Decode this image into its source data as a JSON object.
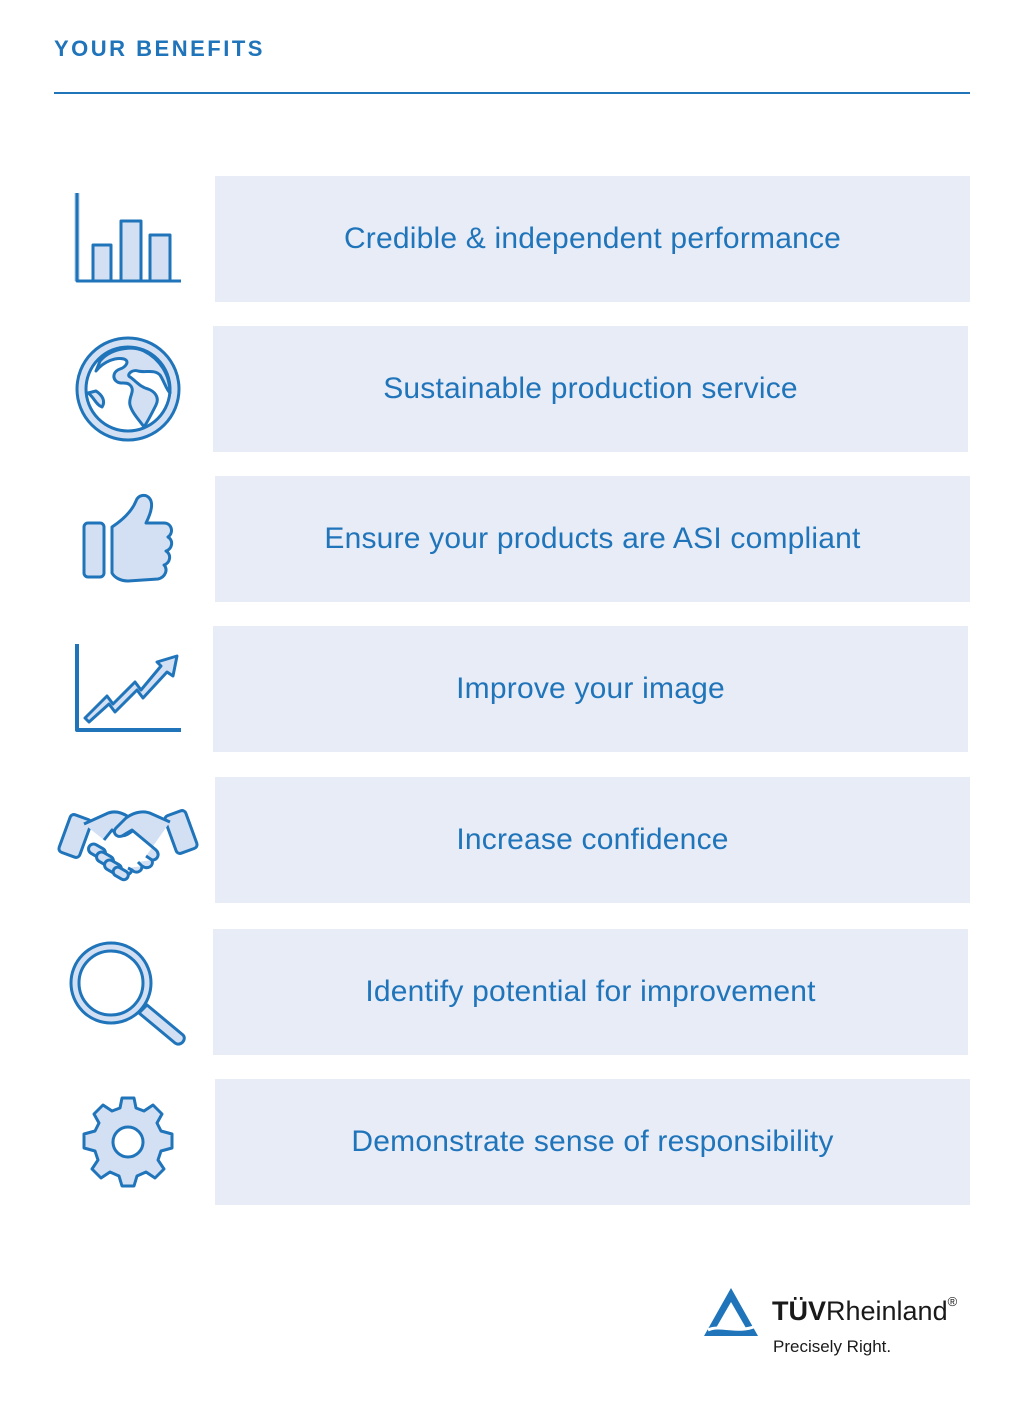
{
  "header": {
    "title": "YOUR BENEFITS"
  },
  "colors": {
    "accent": "#1f74ba",
    "box_background": "#e7ecf7",
    "icon_fill": "#d3e0f3"
  },
  "benefits": [
    {
      "icon": "bar-chart-icon",
      "label": "Credible & independent performance"
    },
    {
      "icon": "globe-icon",
      "label": "Sustainable production service"
    },
    {
      "icon": "thumbs-up-icon",
      "label": "Ensure your products are ASI compliant"
    },
    {
      "icon": "growth-chart-icon",
      "label": "Improve your image"
    },
    {
      "icon": "handshake-icon",
      "label": "Increase confidence"
    },
    {
      "icon": "magnifier-icon",
      "label": "Identify potential for improvement"
    },
    {
      "icon": "gear-icon",
      "label": "Demonstrate sense of responsibility"
    }
  ],
  "logo": {
    "brand_bold": "TÜV",
    "brand_regular": "Rheinland",
    "registered": "®",
    "tagline": "Precisely Right."
  }
}
